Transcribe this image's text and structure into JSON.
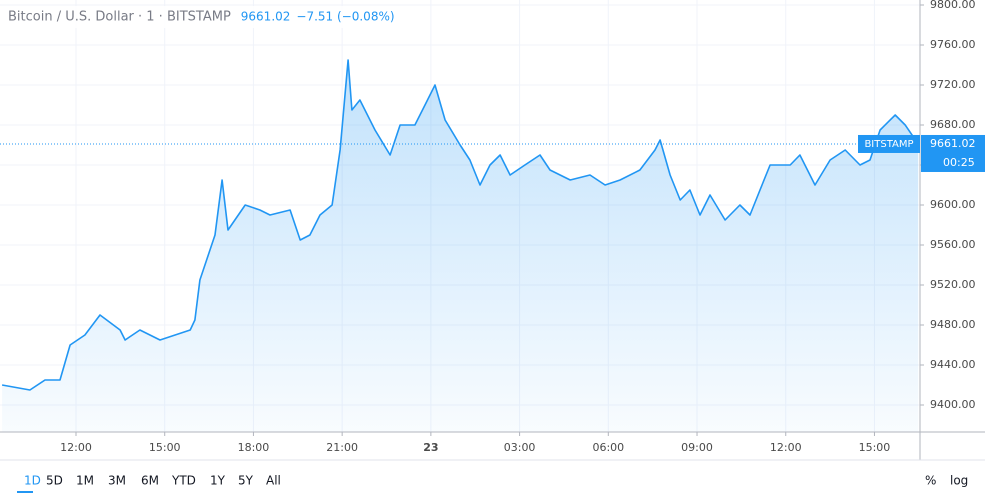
{
  "chart_data": {
    "type": "area",
    "title": "Bitcoin / U.S. Dollar · 1 · BITSTAMP",
    "last_price": 9661.02,
    "change": "−7.51 (−0.08%)",
    "price_source": "BITSTAMP",
    "countdown": "00:25",
    "color": "#2196f3",
    "x": [
      9.5,
      10.44,
      10.95,
      11.46,
      11.8,
      12.3,
      12.81,
      13.49,
      13.66,
      14.16,
      14.84,
      15.35,
      15.86,
      16.02,
      16.19,
      16.7,
      16.94,
      17.14,
      17.72,
      18.22,
      18.56,
      19.24,
      19.58,
      19.91,
      20.25,
      20.66,
      20.93,
      21.2,
      21.33,
      21.6,
      22.11,
      22.62,
      22.96,
      23.46,
      23.8,
      24.14,
      24.48,
      24.99,
      25.32,
      25.66,
      26.0,
      26.34,
      26.68,
      27.18,
      27.69,
      28.03,
      28.71,
      29.38,
      29.89,
      30.4,
      31.07,
      31.58,
      31.75,
      32.09,
      32.43,
      32.76,
      33.1,
      33.44,
      33.95,
      34.45,
      34.79,
      35.13,
      35.47,
      36.15,
      36.48,
      36.99,
      37.5,
      38.01,
      38.51,
      38.85,
      39.19,
      39.7,
      40.04,
      40.48
    ],
    "values": [
      9420,
      9415,
      9425,
      9425,
      9460,
      9470,
      9490,
      9475,
      9465,
      9475,
      9465,
      9470,
      9475,
      9485,
      9525,
      9570,
      9625,
      9575,
      9600,
      9595,
      9590,
      9595,
      9565,
      9570,
      9590,
      9600,
      9655,
      9745,
      9695,
      9705,
      9675,
      9650,
      9680,
      9680,
      9700,
      9720,
      9685,
      9660,
      9645,
      9620,
      9640,
      9650,
      9630,
      9640,
      9650,
      9635,
      9625,
      9630,
      9620,
      9625,
      9635,
      9655,
      9665,
      9630,
      9605,
      9615,
      9590,
      9610,
      9585,
      9600,
      9590,
      9615,
      9640,
      9640,
      9650,
      9620,
      9645,
      9655,
      9640,
      9645,
      9675,
      9690,
      9680,
      9661.02
    ],
    "xlim": [
      9.43,
      40.54
    ],
    "xticks": [
      {
        "value": 12,
        "label": "12:00"
      },
      {
        "value": 15,
        "label": "15:00"
      },
      {
        "value": 18,
        "label": "18:00"
      },
      {
        "value": 21,
        "label": "21:00"
      },
      {
        "value": 24,
        "label": "23"
      },
      {
        "value": 27,
        "label": "03:00"
      },
      {
        "value": 30,
        "label": "06:00"
      },
      {
        "value": 33,
        "label": "09:00"
      },
      {
        "value": 36,
        "label": "12:00"
      },
      {
        "value": 39,
        "label": "15:00"
      }
    ],
    "ylim": [
      9373,
      9805
    ],
    "yticks": [
      {
        "value": 9400,
        "label": "9400.00"
      },
      {
        "value": 9440,
        "label": "9440.00"
      },
      {
        "value": 9480,
        "label": "9480.00"
      },
      {
        "value": 9520,
        "label": "9520.00"
      },
      {
        "value": 9560,
        "label": "9560.00"
      },
      {
        "value": 9600,
        "label": "9600.00"
      },
      {
        "value": 9640,
        "label": "9640.00"
      },
      {
        "value": 9680,
        "label": "9680.00"
      },
      {
        "value": 9720,
        "label": "9720.00"
      },
      {
        "value": 9760,
        "label": "9760.00"
      },
      {
        "value": 9800,
        "label": "9800.00"
      }
    ],
    "grid": true,
    "log_scale": false,
    "ranges": [
      "1D",
      "5D",
      "1M",
      "3M",
      "6M",
      "YTD",
      "1Y",
      "5Y",
      "All"
    ],
    "percent_button": "%",
    "log_button": "log"
  }
}
